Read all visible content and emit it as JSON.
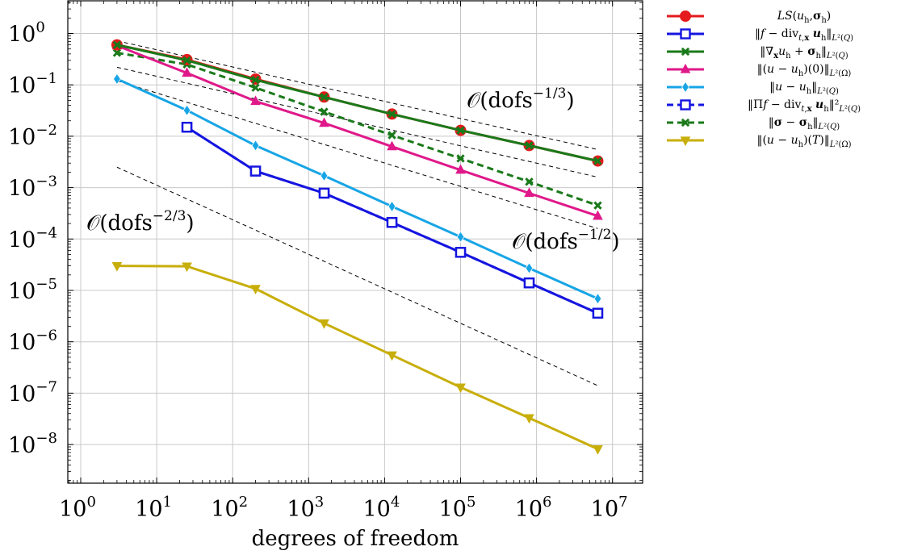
{
  "chart_data": {
    "type": "line",
    "xscale": "log",
    "yscale": "log",
    "xlabel": "degrees of freedom",
    "ylabel": "",
    "title": "",
    "xlim": [
      0.8,
      30000000
    ],
    "ylim": [
      1.4e-09,
      4.5
    ],
    "grid": true,
    "legend_position": "outside-right-top",
    "x_ticks": [
      {
        "base": "10",
        "exp": "0"
      },
      {
        "base": "10",
        "exp": "1"
      },
      {
        "base": "10",
        "exp": "2"
      },
      {
        "base": "10",
        "exp": "3"
      },
      {
        "base": "10",
        "exp": "4"
      },
      {
        "base": "10",
        "exp": "5"
      },
      {
        "base": "10",
        "exp": "6"
      },
      {
        "base": "10",
        "exp": "7"
      }
    ],
    "y_ticks": [
      {
        "base": "10",
        "exp": "0"
      },
      {
        "base": "10",
        "exp": "−1"
      },
      {
        "base": "10",
        "exp": "−2"
      },
      {
        "base": "10",
        "exp": "−3"
      },
      {
        "base": "10",
        "exp": "−4"
      },
      {
        "base": "10",
        "exp": "−5"
      },
      {
        "base": "10",
        "exp": "−6"
      },
      {
        "base": "10",
        "exp": "−7"
      },
      {
        "base": "10",
        "exp": "−8"
      }
    ],
    "series": [
      {
        "name": "LS(u_h, σ_h)",
        "color": "#e41a1c",
        "dashed": false,
        "marker": "circle",
        "x": [
          3,
          25,
          200,
          1600,
          12500,
          100000,
          800000,
          6400000
        ],
        "y": [
          0.6,
          0.31,
          0.13,
          0.058,
          0.027,
          0.013,
          0.0066,
          0.0033
        ]
      },
      {
        "name": "‖f − div_{t,x} u_h‖_{L²(Q)}",
        "color": "#1515e0",
        "dashed": false,
        "marker": "square",
        "x": [
          25,
          200,
          1600,
          12500,
          100000,
          800000,
          6400000
        ],
        "y": [
          0.015,
          0.0021,
          0.00078,
          0.00021,
          5.5e-05,
          1.4e-05,
          3.6e-06
        ]
      },
      {
        "name": "‖∇_x u_h + σ_h‖_{L²(Q)}",
        "color": "#1a7a1a",
        "dashed": false,
        "marker": "x",
        "x": [
          3,
          25,
          200,
          1600,
          12500,
          100000,
          800000,
          6400000
        ],
        "y": [
          0.6,
          0.3,
          0.125,
          0.058,
          0.027,
          0.013,
          0.0066,
          0.0033
        ]
      },
      {
        "name": "‖(u − u_h)(0)‖_{L²(Ω)}",
        "color": "#e0198a",
        "dashed": false,
        "marker": "triangle",
        "x": [
          3,
          25,
          200,
          1600,
          12500,
          100000,
          800000,
          6400000
        ],
        "y": [
          0.58,
          0.17,
          0.048,
          0.018,
          0.0063,
          0.0022,
          0.00078,
          0.00028
        ]
      },
      {
        "name": "‖u − u_h‖_{L²(Q)}",
        "color": "#17a5e6",
        "dashed": false,
        "marker": "diamond",
        "x": [
          3,
          25,
          200,
          1600,
          12500,
          100000,
          800000,
          6400000
        ],
        "y": [
          0.13,
          0.032,
          0.0066,
          0.0017,
          0.00043,
          0.00011,
          2.7e-05,
          6.9e-06
        ]
      },
      {
        "name": "‖Πf − div_{t,x} u_h‖²_{L²(Q)}",
        "color": "#1515e0",
        "dashed": true,
        "marker": "square",
        "x": [
          25,
          200,
          1600,
          12500,
          100000,
          800000,
          6400000
        ],
        "y": [
          0.015,
          0.0021,
          0.00078,
          0.00021,
          5.5e-05,
          1.4e-05,
          3.6e-06
        ]
      },
      {
        "name": "‖σ − σ_h‖_{L²(Q)}",
        "color": "#1a7a1a",
        "dashed": true,
        "marker": "x",
        "x": [
          3,
          25,
          200,
          1600,
          12500,
          100000,
          800000,
          6400000
        ],
        "y": [
          0.42,
          0.25,
          0.088,
          0.03,
          0.0105,
          0.0037,
          0.0013,
          0.00045
        ]
      },
      {
        "name": "‖(u − u_h)(T)‖_{L²(Ω)}",
        "color": "#c8ae0a",
        "dashed": false,
        "marker": "triangle-down",
        "x": [
          3,
          25,
          200,
          1600,
          12500,
          100000,
          800000,
          6400000
        ],
        "y": [
          3e-05,
          2.95e-05,
          1.08e-05,
          2.3e-06,
          5.5e-07,
          1.3e-07,
          3.3e-08,
          8.2e-09
        ]
      }
    ],
    "reference_lines": [
      {
        "name": "O(dofs^-1/3) upper",
        "x": [
          3,
          6400000
        ],
        "y": [
          0.72,
          0.0055
        ]
      },
      {
        "name": "O(dofs^-1/3) lower",
        "x": [
          3,
          6400000
        ],
        "y": [
          0.22,
          0.0016
        ]
      },
      {
        "name": "O(dofs^-1/2)",
        "x": [
          3,
          6400000
        ],
        "y": [
          0.12,
          0.00016
        ]
      },
      {
        "name": "O(dofs^-2/3)",
        "x": [
          3,
          6400000
        ],
        "y": [
          0.0025,
          1.4e-07
        ]
      }
    ],
    "annotations": [
      {
        "text": "𝒪(dofs",
        "sup": "−1/3",
        "close": ")"
      },
      {
        "text": "𝒪(dofs",
        "sup": "−1/2",
        "close": ")"
      },
      {
        "text": "𝒪(dofs",
        "sup": "−2/3",
        "close": ")"
      }
    ],
    "legend": [
      {
        "series": 0,
        "html": "<i>LS</i>(<i>u</i><sub>h</sub>,<b>σ</b><sub>h</sub>)"
      },
      {
        "series": 1,
        "html": "‖<i>f</i> − div<sub><i>t</i>,<b>x</b></sub> <b><i>u</i></b><sub>h</sub>‖<sub><i>L</i>²(<i>Q</i>)</sub>"
      },
      {
        "series": 2,
        "html": "‖∇<sub><b>x</b></sub><i>u</i><sub>h</sub> + <b>σ</b><sub>h</sub>‖<sub><i>L</i>²(<i>Q</i>)</sub>"
      },
      {
        "series": 3,
        "html": "‖(<i>u</i> − <i>u</i><sub>h</sub>)(0)‖<sub><i>L</i>²(Ω)</sub>"
      },
      {
        "series": 4,
        "html": "‖<i>u</i> − <i>u</i><sub>h</sub>‖<sub><i>L</i>²(<i>Q</i>)</sub>"
      },
      {
        "series": 5,
        "html": "‖Π<i>f</i> − div<sub><i>t</i>,<b>x</b></sub> <b><i>u</i></b><sub>h</sub>‖²<sub><i>L</i>²(<i>Q</i>)</sub>"
      },
      {
        "series": 6,
        "html": "‖<b>σ</b> − <b>σ</b><sub>h</sub>‖<sub><i>L</i>²(<i>Q</i>)</sub>"
      },
      {
        "series": 7,
        "html": "‖(<i>u</i> − <i>u</i><sub>h</sub>)(<i>T</i>)‖<sub><i>L</i>²(Ω)</sub>"
      }
    ]
  }
}
